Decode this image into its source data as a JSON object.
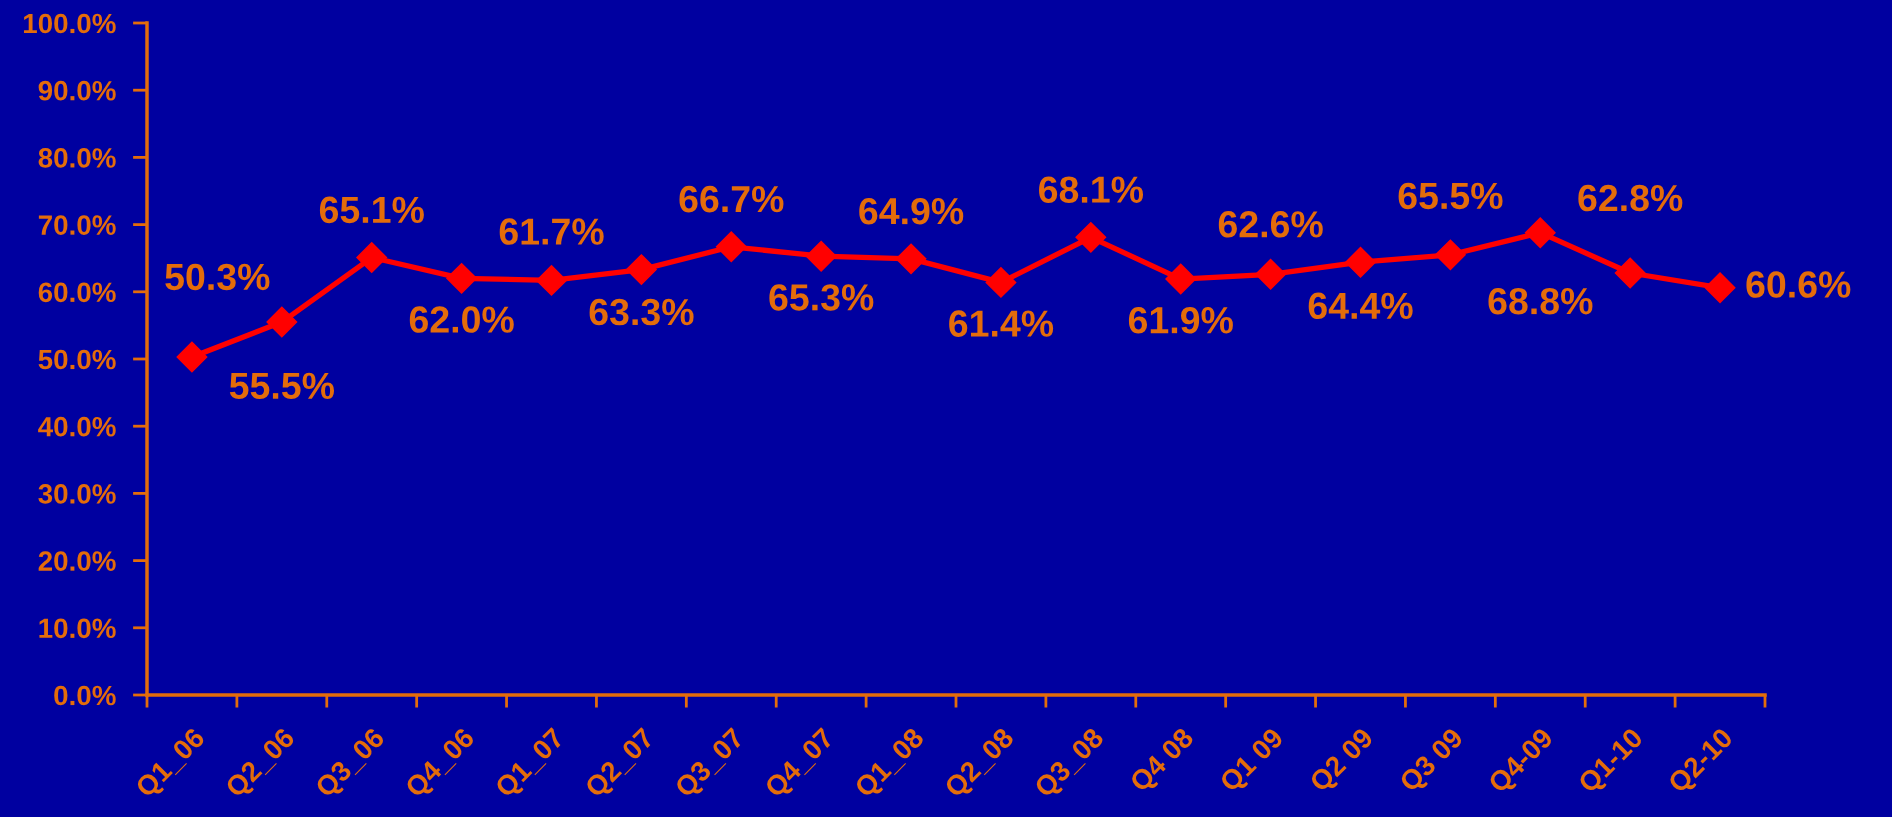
{
  "chart_data": {
    "type": "line",
    "categories": [
      "Q1_06",
      "Q2_06",
      "Q3_06",
      "Q4_06",
      "Q1_07",
      "Q2_07",
      "Q3_07",
      "Q4_07",
      "Q1_08",
      "Q2_08",
      "Q3_08",
      "Q4 08",
      "Q1 09",
      "Q2 09",
      "Q3 09",
      "Q4-09",
      "Q1-10",
      "Q2-10"
    ],
    "series": [
      {
        "color": "#ff0000",
        "values": [
          50.3,
          55.5,
          65.1,
          62.0,
          61.7,
          63.3,
          66.7,
          65.3,
          64.9,
          61.4,
          68.1,
          61.9,
          62.6,
          64.4,
          65.5,
          68.8,
          62.8,
          60.6
        ],
        "value_labels": [
          "50.3%",
          "55.5%",
          "65.1%",
          "62.0%",
          "61.7%",
          "63.3%",
          "66.7%",
          "65.3%",
          "64.9%",
          "61.4%",
          "68.1%",
          "61.9%",
          "62.6%",
          "64.4%",
          "65.5%",
          "68.8%",
          "62.8%",
          "60.6%"
        ]
      }
    ],
    "ylim": [
      0,
      100
    ],
    "yticks": [
      {
        "value": 0,
        "label": "0.0%"
      },
      {
        "value": 10,
        "label": "10.0%"
      },
      {
        "value": 20,
        "label": "20.0%"
      },
      {
        "value": 30,
        "label": "30.0%"
      },
      {
        "value": 40,
        "label": "40.0%"
      },
      {
        "value": 50,
        "label": "50.0%"
      },
      {
        "value": 60,
        "label": "60.0%"
      },
      {
        "value": 70,
        "label": "70.0%"
      },
      {
        "value": 80,
        "label": "80.0%"
      },
      {
        "value": 90,
        "label": "90.0%"
      },
      {
        "value": 100,
        "label": "100.0%"
      }
    ],
    "marker": "diamond",
    "line_style": "solid"
  }
}
